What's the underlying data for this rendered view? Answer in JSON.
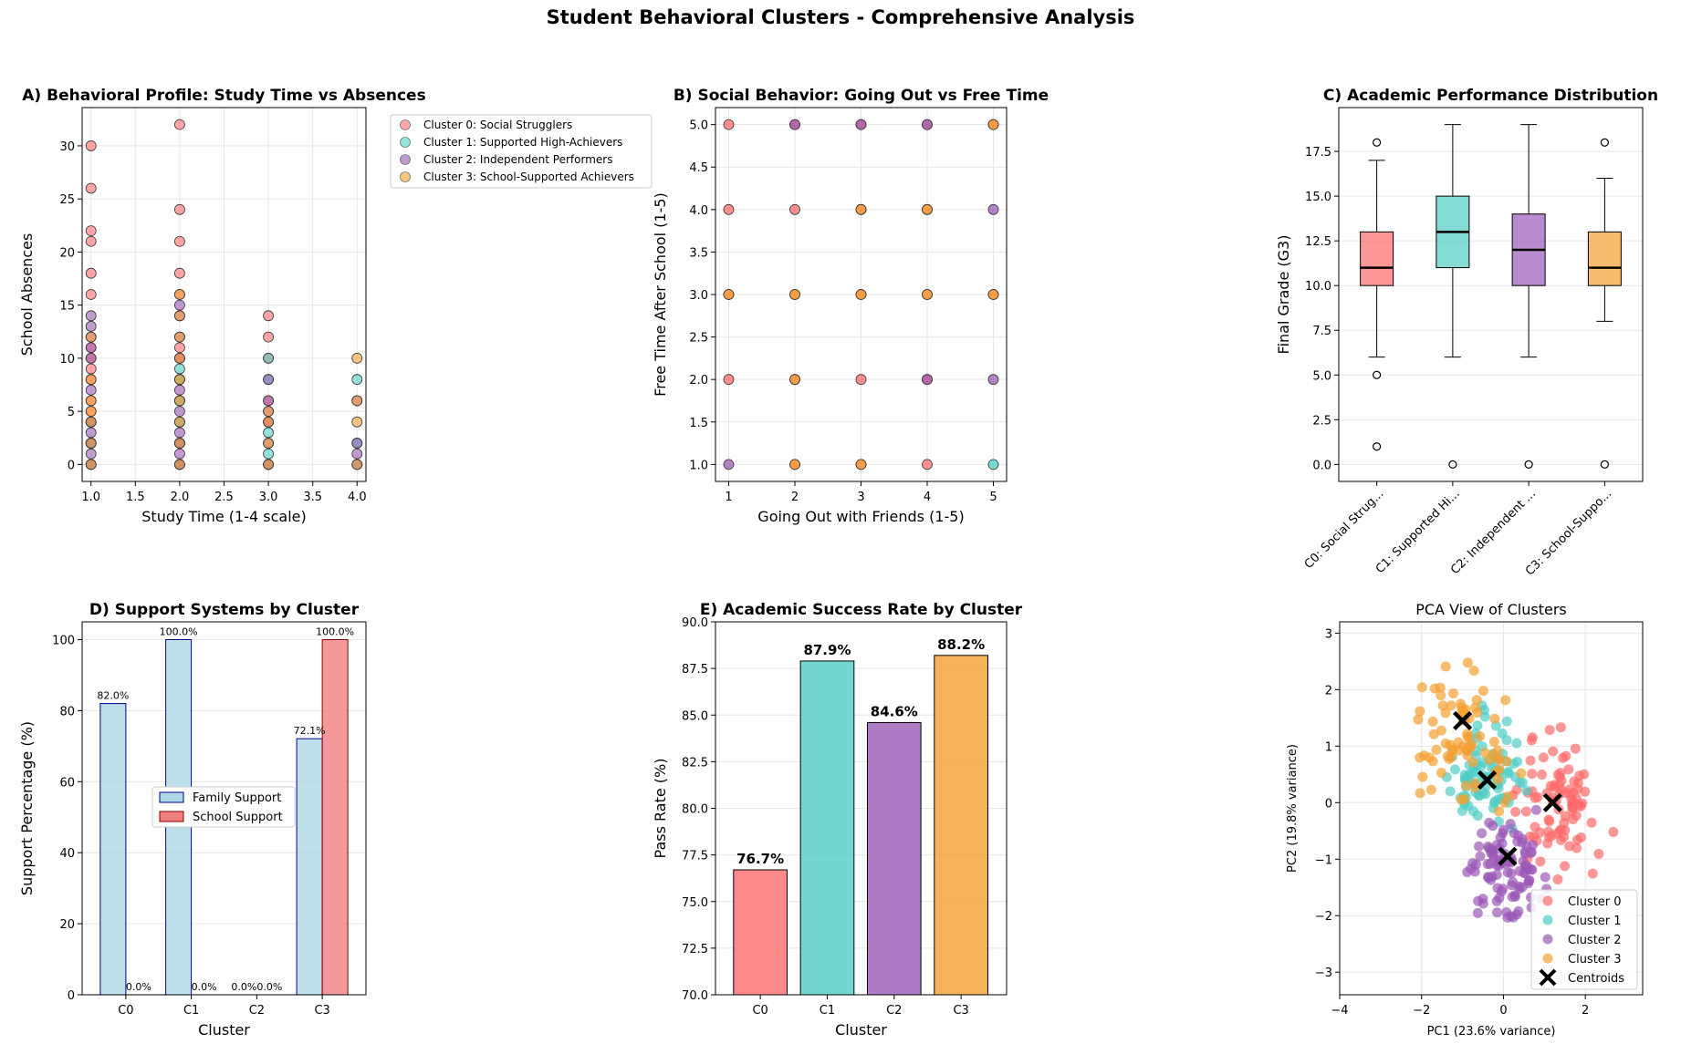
{
  "figure_title": "Student Behavioral Clusters - Comprehensive Analysis",
  "colors": {
    "c0": "#ff6b6b",
    "c1": "#4ecdc4",
    "c2": "#9b59b6",
    "c3": "#f5a030",
    "grid": "#e6e6e6",
    "family_fill": "#add8e6",
    "family_edge": "#00008b",
    "school_fill": "#f08080",
    "school_edge": "#8b0000"
  },
  "chart_data": [
    {
      "id": "A",
      "type": "scatter",
      "title": "A) Behavioral Profile: Study Time vs Absences",
      "xlabel": "Study Time (1-4 scale)",
      "ylabel": "School Absences",
      "xlim": [
        0.9,
        4.1
      ],
      "ylim": [
        -1.6,
        33.6
      ],
      "xticks": [
        "1.0",
        "1.5",
        "2.0",
        "2.5",
        "3.0",
        "3.5",
        "4.0"
      ],
      "yticks": [
        "0",
        "5",
        "10",
        "15",
        "20",
        "25",
        "30"
      ],
      "grid": true,
      "legend_position": "outside-right",
      "legend": [
        "Cluster 0: Social Strugglers",
        "Cluster 1: Supported High-Achievers",
        "Cluster 2: Independent Performers",
        "Cluster 3: School-Supported Achievers"
      ],
      "series": [
        {
          "name": "Cluster 0: Social Strugglers",
          "points": [
            [
              1,
              30
            ],
            [
              1,
              26
            ],
            [
              1,
              22
            ],
            [
              1,
              21
            ],
            [
              1,
              18
            ],
            [
              1,
              16
            ],
            [
              1,
              11
            ],
            [
              1,
              10
            ],
            [
              1,
              9
            ],
            [
              1,
              8
            ],
            [
              1,
              6
            ],
            [
              1,
              5
            ],
            [
              1,
              4
            ],
            [
              1,
              2
            ],
            [
              1,
              0
            ],
            [
              2,
              32
            ],
            [
              2,
              24
            ],
            [
              2,
              21
            ],
            [
              2,
              18
            ],
            [
              2,
              16
            ],
            [
              2,
              11
            ],
            [
              2,
              10
            ],
            [
              2,
              8
            ],
            [
              2,
              6
            ],
            [
              2,
              4
            ],
            [
              2,
              2
            ],
            [
              2,
              0
            ],
            [
              3,
              14
            ],
            [
              3,
              12
            ],
            [
              3,
              10
            ],
            [
              3,
              6
            ],
            [
              3,
              4
            ],
            [
              3,
              0
            ]
          ]
        },
        {
          "name": "Cluster 1: Supported High-Achievers",
          "points": [
            [
              1,
              4
            ],
            [
              1,
              2
            ],
            [
              1,
              0
            ],
            [
              2,
              9
            ],
            [
              2,
              8
            ],
            [
              2,
              6
            ],
            [
              2,
              4
            ],
            [
              2,
              2
            ],
            [
              2,
              0
            ],
            [
              3,
              10
            ],
            [
              3,
              8
            ],
            [
              3,
              3
            ],
            [
              3,
              1
            ],
            [
              3,
              0
            ],
            [
              4,
              8
            ],
            [
              4,
              2
            ],
            [
              4,
              0
            ]
          ]
        },
        {
          "name": "Cluster 2: Independent Performers",
          "points": [
            [
              1,
              14
            ],
            [
              1,
              13
            ],
            [
              1,
              12
            ],
            [
              1,
              11
            ],
            [
              1,
              10
            ],
            [
              1,
              7
            ],
            [
              1,
              4
            ],
            [
              1,
              3
            ],
            [
              1,
              2
            ],
            [
              1,
              1
            ],
            [
              1,
              0
            ],
            [
              2,
              15
            ],
            [
              2,
              14
            ],
            [
              2,
              12
            ],
            [
              2,
              10
            ],
            [
              2,
              7
            ],
            [
              2,
              5
            ],
            [
              2,
              3
            ],
            [
              2,
              2
            ],
            [
              2,
              1
            ],
            [
              2,
              0
            ],
            [
              3,
              8
            ],
            [
              3,
              6
            ],
            [
              3,
              5
            ],
            [
              3,
              4
            ],
            [
              3,
              2
            ],
            [
              3,
              0
            ],
            [
              4,
              6
            ],
            [
              4,
              2
            ],
            [
              4,
              1
            ],
            [
              4,
              0
            ]
          ]
        },
        {
          "name": "Cluster 3: School-Supported Achievers",
          "points": [
            [
              1,
              12
            ],
            [
              1,
              8
            ],
            [
              1,
              6
            ],
            [
              1,
              5
            ],
            [
              1,
              4
            ],
            [
              1,
              2
            ],
            [
              1,
              0
            ],
            [
              2,
              16
            ],
            [
              2,
              14
            ],
            [
              2,
              12
            ],
            [
              2,
              10
            ],
            [
              2,
              8
            ],
            [
              2,
              6
            ],
            [
              2,
              4
            ],
            [
              2,
              2
            ],
            [
              2,
              0
            ],
            [
              3,
              5
            ],
            [
              3,
              4
            ],
            [
              3,
              2
            ],
            [
              3,
              0
            ],
            [
              4,
              10
            ],
            [
              4,
              6
            ],
            [
              4,
              4
            ],
            [
              4,
              0
            ]
          ]
        }
      ]
    },
    {
      "id": "B",
      "type": "scatter",
      "title": "B) Social Behavior: Going Out vs Free Time",
      "xlabel": "Going Out with Friends (1-5)",
      "ylabel": "Free Time After School (1-5)",
      "xlim": [
        0.8,
        5.2
      ],
      "ylim": [
        0.8,
        5.2
      ],
      "xticks": [
        "1",
        "2",
        "3",
        "4",
        "5"
      ],
      "yticks": [
        "1.0",
        "1.5",
        "2.0",
        "2.5",
        "3.0",
        "3.5",
        "4.0",
        "4.5",
        "5.0"
      ],
      "grid": true,
      "series": [
        {
          "name": "Cluster 0",
          "points": [
            [
              1,
              5
            ],
            [
              1,
              4
            ],
            [
              1,
              3
            ],
            [
              1,
              2
            ],
            [
              2,
              5
            ],
            [
              2,
              4
            ],
            [
              2,
              3
            ],
            [
              2,
              2
            ],
            [
              2,
              1
            ],
            [
              3,
              5
            ],
            [
              3,
              4
            ],
            [
              3,
              3
            ],
            [
              3,
              2
            ],
            [
              3,
              1
            ],
            [
              4,
              5
            ],
            [
              4,
              4
            ],
            [
              4,
              3
            ],
            [
              4,
              2
            ],
            [
              4,
              1
            ],
            [
              5,
              5
            ],
            [
              5,
              3
            ]
          ]
        },
        {
          "name": "Cluster 1",
          "points": [
            [
              5,
              1
            ]
          ]
        },
        {
          "name": "Cluster 2",
          "points": [
            [
              1,
              1
            ],
            [
              2,
              5
            ],
            [
              3,
              5
            ],
            [
              4,
              5
            ],
            [
              4,
              2
            ],
            [
              5,
              4
            ],
            [
              5,
              2
            ]
          ]
        },
        {
          "name": "Cluster 3",
          "points": [
            [
              1,
              3
            ],
            [
              2,
              3
            ],
            [
              2,
              2
            ],
            [
              2,
              1
            ],
            [
              3,
              4
            ],
            [
              3,
              3
            ],
            [
              3,
              1
            ],
            [
              4,
              4
            ],
            [
              4,
              3
            ],
            [
              5,
              5
            ],
            [
              5,
              3
            ]
          ]
        }
      ]
    },
    {
      "id": "C",
      "type": "box",
      "title": "C) Academic Performance Distribution",
      "ylabel": "Final Grade (G3)",
      "ylim": [
        -0.95,
        19.95
      ],
      "yticks": [
        "0.0",
        "2.5",
        "5.0",
        "7.5",
        "10.0",
        "12.5",
        "15.0",
        "17.5"
      ],
      "categories": [
        "C0: Social Strug...",
        "C1: Supported Hi...",
        "C2: Independent ...",
        "C3: School-Suppo..."
      ],
      "boxes": [
        {
          "q1": 10,
          "median": 11,
          "q3": 13,
          "whislo": 6,
          "whishi": 17,
          "fliers": [
            18,
            5,
            1
          ]
        },
        {
          "q1": 11,
          "median": 13,
          "q3": 15,
          "whislo": 6,
          "whishi": 19,
          "fliers": [
            0
          ]
        },
        {
          "q1": 10,
          "median": 12,
          "q3": 14,
          "whislo": 6,
          "whishi": 19,
          "fliers": [
            0
          ]
        },
        {
          "q1": 10,
          "median": 11,
          "q3": 13,
          "whislo": 8,
          "whishi": 16,
          "fliers": [
            18,
            0
          ]
        }
      ],
      "grid": true
    },
    {
      "id": "D",
      "type": "bar",
      "title": "D) Support Systems by Cluster",
      "xlabel": "Cluster",
      "ylabel": "Support Percentage (%)",
      "ylim": [
        0,
        105
      ],
      "yticks": [
        "0",
        "20",
        "40",
        "60",
        "80",
        "100"
      ],
      "categories": [
        "C0",
        "C1",
        "C2",
        "C3"
      ],
      "series": [
        {
          "name": "Family Support",
          "values": [
            82.0,
            100.0,
            0.0,
            72.1
          ],
          "labels": [
            "82.0%",
            "100.0%",
            "0.0%",
            "72.1%"
          ]
        },
        {
          "name": "School Support",
          "values": [
            0.0,
            0.0,
            0.0,
            100.0
          ],
          "labels": [
            "0.0%",
            "0.0%",
            "0.0%",
            "100.0%"
          ]
        }
      ],
      "legend_position": "center-left",
      "grid": true
    },
    {
      "id": "E",
      "type": "bar",
      "title": "E) Academic Success Rate by Cluster",
      "xlabel": "Cluster",
      "ylabel": "Pass Rate (%)",
      "ylim": [
        70,
        90
      ],
      "yticks": [
        "70.0",
        "72.5",
        "75.0",
        "77.5",
        "80.0",
        "82.5",
        "85.0",
        "87.5",
        "90.0"
      ],
      "categories": [
        "C0",
        "C1",
        "C2",
        "C3"
      ],
      "values": [
        76.7,
        87.9,
        84.6,
        88.2
      ],
      "labels": [
        "76.7%",
        "87.9%",
        "84.6%",
        "88.2%"
      ],
      "grid": true
    },
    {
      "id": "F",
      "type": "scatter",
      "title": "PCA View of Clusters",
      "xlabel": "PC1 (23.6% variance)",
      "ylabel": "PC2 (19.8% variance)",
      "xlim": [
        -4.0,
        3.4
      ],
      "ylim": [
        -3.4,
        3.2
      ],
      "xticks": [
        "−4",
        "−2",
        "0",
        "2"
      ],
      "yticks": [
        "−3",
        "−2",
        "−1",
        "0",
        "1",
        "2",
        "3"
      ],
      "grid": true,
      "legend_position": "lower-right",
      "legend": [
        "Cluster 0",
        "Cluster 1",
        "Cluster 2",
        "Cluster 3",
        "Centroids"
      ],
      "centroids": [
        [
          1.2,
          0.0
        ],
        [
          -0.4,
          0.4
        ],
        [
          0.1,
          -0.95
        ],
        [
          -1.0,
          1.45
        ]
      ],
      "clusters": [
        {
          "name": "Cluster 0",
          "center": [
            1.3,
            0.0
          ],
          "spread": [
            0.85,
            0.9
          ],
          "count": 90
        },
        {
          "name": "Cluster 1",
          "center": [
            -0.4,
            0.5
          ],
          "spread": [
            0.8,
            0.75
          ],
          "count": 90
        },
        {
          "name": "Cluster 2",
          "center": [
            0.0,
            -1.2
          ],
          "spread": [
            0.85,
            0.75
          ],
          "count": 100
        },
        {
          "name": "Cluster 3",
          "center": [
            -1.0,
            1.2
          ],
          "spread": [
            0.95,
            0.9
          ],
          "count": 80
        }
      ]
    }
  ]
}
